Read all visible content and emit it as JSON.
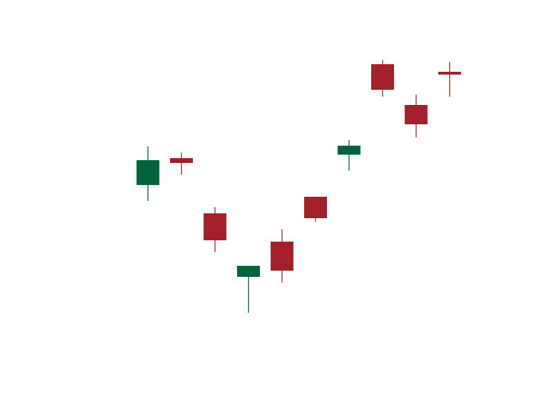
{
  "chart_data": {
    "type": "candlestick",
    "categories": [
      null,
      null,
      null,
      null,
      null,
      null,
      null,
      null,
      null,
      null
    ],
    "open": [
      61.4,
      69.2,
      53.2,
      34.8,
      45.0,
      58.0,
      70.2,
      96.4,
      84.6,
      94.2
    ],
    "high": [
      72.6,
      70.8,
      55.0,
      38.0,
      48.6,
      58.0,
      74.4,
      97.6,
      87.6,
      97.0
    ],
    "low": [
      56.8,
      64.4,
      42.0,
      24.4,
      33.2,
      50.8,
      65.6,
      87.0,
      75.2,
      87.0
    ],
    "close": [
      68.6,
      67.8,
      45.4,
      38.0,
      36.6,
      51.8,
      72.8,
      89.0,
      79.0,
      93.4
    ],
    "up_color": "#00643c",
    "down_color": "#a3202a",
    "ylim": [
      0,
      115
    ]
  }
}
